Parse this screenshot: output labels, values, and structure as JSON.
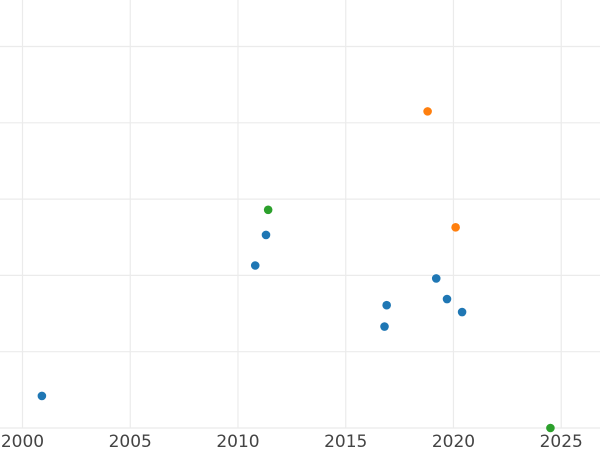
{
  "chart_data": {
    "type": "scatter",
    "title": "",
    "xlabel": "",
    "ylabel": "",
    "xlim": [
      2000,
      2026.8
    ],
    "ylim": [
      0,
      5.4
    ],
    "grid": true,
    "x_ticks": [
      2000,
      2005,
      2010,
      2015,
      2020,
      2025
    ],
    "x_tick_labels": [
      "2000",
      "2005",
      "2010",
      "2015",
      "2020",
      "2025"
    ],
    "y_grid": [
      0,
      1,
      2,
      3,
      4,
      5
    ],
    "series": [
      {
        "color": "#1f77b4",
        "points": [
          {
            "x": 2000.9,
            "y": 0.42
          },
          {
            "x": 2010.8,
            "y": 2.13
          },
          {
            "x": 2011.3,
            "y": 2.53
          },
          {
            "x": 2016.8,
            "y": 1.33
          },
          {
            "x": 2016.9,
            "y": 1.61
          },
          {
            "x": 2019.2,
            "y": 1.96
          },
          {
            "x": 2019.7,
            "y": 1.69
          },
          {
            "x": 2020.4,
            "y": 1.52
          }
        ]
      },
      {
        "color": "#ff7f0e",
        "points": [
          {
            "x": 2018.8,
            "y": 4.15
          },
          {
            "x": 2020.1,
            "y": 2.63
          }
        ]
      },
      {
        "color": "#2ca02c",
        "points": [
          {
            "x": 2011.4,
            "y": 2.86
          },
          {
            "x": 2024.5,
            "y": 0.0
          }
        ]
      }
    ]
  }
}
